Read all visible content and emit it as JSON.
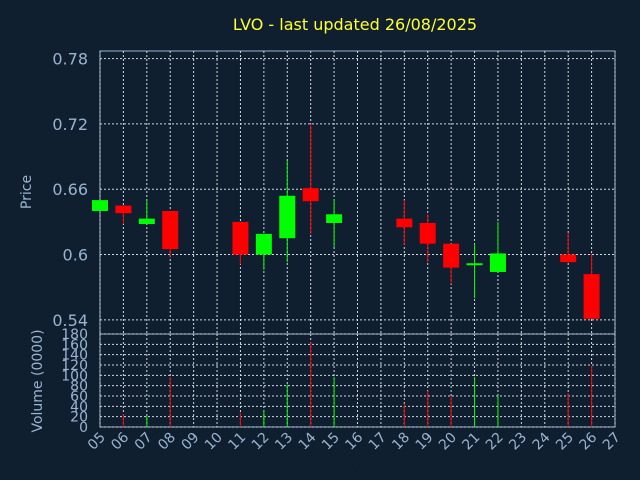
{
  "chart_data": {
    "type": "candlestick",
    "title": "LVO - last updated 26/08/2025",
    "xlabel": "Day",
    "ylabel_price": "Price",
    "ylabel_volume": "Volume (0000)",
    "x_ticks": [
      "05",
      "06",
      "07",
      "08",
      "09",
      "10",
      "11",
      "12",
      "13",
      "14",
      "15",
      "16",
      "17",
      "18",
      "19",
      "20",
      "21",
      "22",
      "23",
      "24",
      "25",
      "26",
      "27"
    ],
    "price_ticks": [
      "0.78",
      "0.72",
      "0.66",
      "0.6",
      "0.54"
    ],
    "price_tick_values": [
      0.78,
      0.72,
      0.66,
      0.6,
      0.54
    ],
    "price_ylim": [
      0.527,
      0.787
    ],
    "volume_ticks": [
      "180",
      "160",
      "140",
      "120",
      "100",
      "80",
      "60",
      "40",
      "20",
      "0"
    ],
    "volume_tick_values": [
      180,
      160,
      140,
      120,
      100,
      80,
      60,
      40,
      20,
      0
    ],
    "volume_ylim": [
      0,
      180
    ],
    "grid": true,
    "up_color": "#00ff00",
    "down_color": "#ff0000",
    "candles": [
      {
        "day": "05",
        "open": 0.64,
        "close": 0.65,
        "high": 0.65,
        "low": 0.64,
        "volume": 0
      },
      {
        "day": "06",
        "open": 0.645,
        "close": 0.638,
        "high": 0.645,
        "low": 0.628,
        "volume": 25
      },
      {
        "day": "07",
        "open": 0.628,
        "close": 0.633,
        "high": 0.65,
        "low": 0.628,
        "volume": 22
      },
      {
        "day": "08",
        "open": 0.64,
        "close": 0.605,
        "high": 0.64,
        "low": 0.597,
        "volume": 97
      },
      {
        "day": "11",
        "open": 0.63,
        "close": 0.6,
        "high": 0.63,
        "low": 0.591,
        "volume": 28
      },
      {
        "day": "12",
        "open": 0.6,
        "close": 0.619,
        "high": 0.619,
        "low": 0.586,
        "volume": 32
      },
      {
        "day": "13",
        "open": 0.615,
        "close": 0.654,
        "high": 0.686,
        "low": 0.593,
        "volume": 82
      },
      {
        "day": "14",
        "open": 0.661,
        "close": 0.649,
        "high": 0.72,
        "low": 0.619,
        "volume": 165
      },
      {
        "day": "15",
        "open": 0.629,
        "close": 0.637,
        "high": 0.651,
        "low": 0.607,
        "volume": 97
      },
      {
        "day": "18",
        "open": 0.633,
        "close": 0.625,
        "high": 0.65,
        "low": 0.609,
        "volume": 45
      },
      {
        "day": "19",
        "open": 0.629,
        "close": 0.61,
        "high": 0.637,
        "low": 0.593,
        "volume": 70
      },
      {
        "day": "20",
        "open": 0.61,
        "close": 0.588,
        "high": 0.61,
        "low": 0.573,
        "volume": 60
      },
      {
        "day": "21",
        "open": 0.591,
        "close": 0.592,
        "high": 0.61,
        "low": 0.56,
        "volume": 97
      },
      {
        "day": "22",
        "open": 0.584,
        "close": 0.601,
        "high": 0.63,
        "low": 0.584,
        "volume": 62
      },
      {
        "day": "25",
        "open": 0.6,
        "close": 0.593,
        "high": 0.62,
        "low": 0.593,
        "volume": 65
      },
      {
        "day": "26",
        "open": 0.582,
        "close": 0.541,
        "high": 0.601,
        "low": 0.541,
        "volume": 118
      }
    ]
  }
}
